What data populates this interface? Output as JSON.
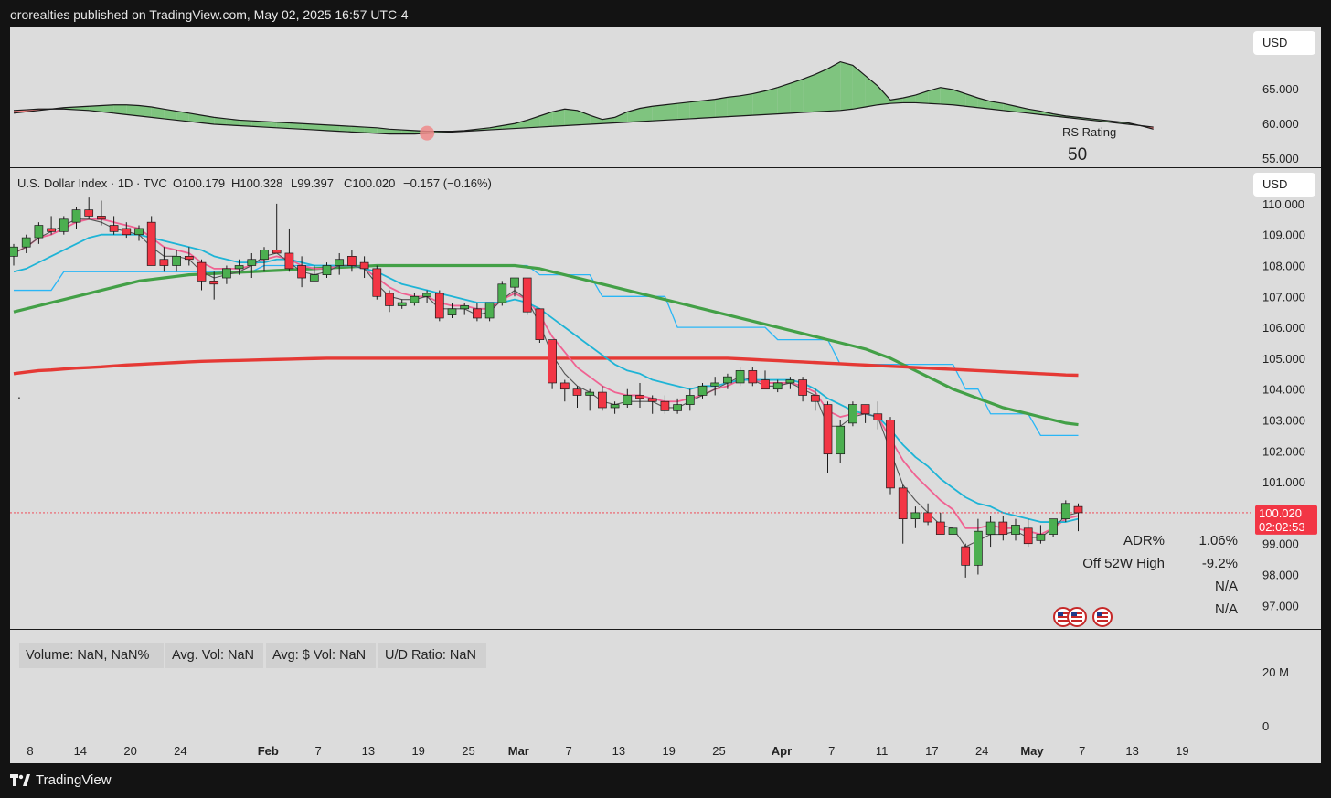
{
  "header": {
    "published_text": "ororealties published on TradingView.com, May 02, 2025 16:57 UTC-4"
  },
  "footer": {
    "logo_text": "TradingView"
  },
  "currency_label": "USD",
  "rs_panel": {
    "label": "RS Rating",
    "value": "50",
    "y_ticks": [
      "65.000",
      "60.000",
      "55.000"
    ],
    "line": [
      61.6,
      61.8,
      62.0,
      62.2,
      62.4,
      62.5,
      62.6,
      62.7,
      62.8,
      62.8,
      62.7,
      62.5,
      62.2,
      61.9,
      61.6,
      61.3,
      61.0,
      60.8,
      60.6,
      60.5,
      60.4,
      60.3,
      60.2,
      60.1,
      60.0,
      59.9,
      59.8,
      59.7,
      59.6,
      59.5,
      59.3,
      59.2,
      59.1,
      59.0,
      59.0,
      59.0,
      59.1,
      59.3,
      59.5,
      59.8,
      60.1,
      60.6,
      61.2,
      61.8,
      62.2,
      62.0,
      61.3,
      60.7,
      61.0,
      61.8,
      62.3,
      62.6,
      62.8,
      63.0,
      63.2,
      63.4,
      63.6,
      63.9,
      64.1,
      64.4,
      64.8,
      65.3,
      65.9,
      66.5,
      67.2,
      68.0,
      69.0,
      68.5,
      67.0,
      65.5,
      63.5,
      63.8,
      64.2,
      64.8,
      65.3,
      65.0,
      64.4,
      63.8,
      63.3,
      63.0,
      62.6,
      62.2,
      61.9,
      61.5,
      61.2,
      61.0,
      60.8,
      60.6,
      60.4,
      60.2,
      59.8,
      59.3
    ],
    "baseline": [
      62.0,
      62.1,
      62.2,
      62.2,
      62.2,
      62.1,
      62.0,
      61.8,
      61.6,
      61.4,
      61.2,
      61.0,
      60.8,
      60.6,
      60.4,
      60.2,
      60.0,
      59.9,
      59.8,
      59.7,
      59.6,
      59.5,
      59.4,
      59.3,
      59.2,
      59.1,
      59.0,
      58.9,
      58.8,
      58.7,
      58.6,
      58.6,
      58.6,
      58.7,
      58.8,
      58.9,
      59.0,
      59.1,
      59.2,
      59.3,
      59.4,
      59.5,
      59.6,
      59.7,
      59.8,
      59.9,
      60.0,
      60.1,
      60.2,
      60.3,
      60.4,
      60.5,
      60.6,
      60.7,
      60.8,
      60.9,
      61.0,
      61.1,
      61.2,
      61.3,
      61.4,
      61.5,
      61.6,
      61.7,
      61.8,
      61.9,
      62.0,
      62.2,
      62.5,
      62.8,
      63.0,
      63.1,
      63.1,
      63.0,
      62.9,
      62.8,
      62.6,
      62.4,
      62.2,
      62.0,
      61.8,
      61.6,
      61.4,
      61.2,
      61.0,
      60.8,
      60.6,
      60.4,
      60.2,
      60.0,
      59.8,
      59.6
    ]
  },
  "main_panel": {
    "title": "U.S. Dollar Index · 1D · TVC",
    "ohlc": {
      "open": "O100.179",
      "high": "H100.328",
      "low": "L99.397",
      "close": "C100.020",
      "change": "−0.157 (−0.16%)"
    },
    "price_tag": {
      "price": "100.020",
      "countdown": "02:02:53"
    },
    "stats": [
      {
        "label": "ADR%",
        "value": "1.06%"
      },
      {
        "label": "Off 52W High",
        "value": "-9.2%"
      },
      {
        "label": "",
        "value": "N/A"
      },
      {
        "label": "",
        "value": "N/A"
      }
    ],
    "bullet": "."
  },
  "volume_panel": {
    "boxes": [
      "Volume: NaN, NaN%",
      "Avg. Vol: NaN",
      "Avg: $ Vol: NaN",
      "U/D Ratio: NaN"
    ],
    "y_ticks": [
      "20 M",
      "0"
    ]
  },
  "colors": {
    "bull": "#4caf50",
    "bear": "#f23645",
    "ema_fast": "#1eb4d6",
    "ema_slow": "#f06292",
    "sma50": "#43a047",
    "sma200": "#e53935",
    "step_line": "#29b6f6",
    "rs_up": "#7fc47f",
    "rs_down": "#f08080"
  },
  "chart_data": {
    "type": "candlestick",
    "x_ticks": [
      "8",
      "14",
      "20",
      "24",
      "Feb",
      "7",
      "13",
      "19",
      "25",
      "Mar",
      "7",
      "13",
      "19",
      "25",
      "Apr",
      "7",
      "11",
      "17",
      "24",
      "May",
      "7",
      "13",
      "19"
    ],
    "y_axis": {
      "ticks": [
        "110.000",
        "109.000",
        "108.000",
        "107.000",
        "106.000",
        "105.000",
        "104.000",
        "103.000",
        "102.000",
        "101.000",
        "99.000",
        "98.000",
        "97.000"
      ],
      "range": [
        96.7,
        111.3
      ]
    },
    "candles": [
      [
        108.3,
        108.7,
        108.0,
        108.6
      ],
      [
        108.6,
        109.0,
        108.4,
        108.9
      ],
      [
        108.9,
        109.4,
        108.7,
        109.3
      ],
      [
        109.2,
        109.6,
        109.0,
        109.1
      ],
      [
        109.1,
        109.6,
        109.0,
        109.5
      ],
      [
        109.4,
        109.9,
        109.2,
        109.8
      ],
      [
        109.8,
        110.2,
        109.5,
        109.6
      ],
      [
        109.6,
        110.1,
        109.3,
        109.5
      ],
      [
        109.3,
        109.6,
        109.0,
        109.1
      ],
      [
        109.2,
        109.4,
        108.9,
        109.0
      ],
      [
        109.0,
        109.3,
        108.8,
        109.2
      ],
      [
        109.4,
        109.6,
        108.0,
        108.0
      ],
      [
        108.2,
        108.6,
        107.8,
        108.0
      ],
      [
        108.0,
        108.5,
        107.8,
        108.3
      ],
      [
        108.3,
        108.6,
        108.0,
        108.2
      ],
      [
        108.1,
        108.2,
        107.2,
        107.5
      ],
      [
        107.5,
        107.8,
        106.9,
        107.4
      ],
      [
        107.6,
        108.0,
        107.4,
        107.9
      ],
      [
        107.9,
        108.2,
        107.7,
        108.0
      ],
      [
        108.0,
        108.4,
        107.6,
        108.2
      ],
      [
        108.2,
        108.6,
        107.8,
        108.5
      ],
      [
        108.5,
        110.0,
        108.4,
        108.4
      ],
      [
        108.4,
        109.2,
        107.8,
        107.9
      ],
      [
        108.0,
        108.3,
        107.3,
        107.6
      ],
      [
        107.5,
        108.0,
        107.5,
        107.7
      ],
      [
        107.7,
        108.1,
        107.6,
        108.0
      ],
      [
        108.0,
        108.4,
        107.7,
        108.2
      ],
      [
        108.3,
        108.5,
        107.8,
        108.0
      ],
      [
        108.1,
        108.3,
        107.6,
        107.9
      ],
      [
        107.9,
        108.0,
        106.9,
        107.0
      ],
      [
        107.1,
        107.2,
        106.5,
        106.7
      ],
      [
        106.7,
        106.9,
        106.6,
        106.8
      ],
      [
        106.8,
        107.1,
        106.7,
        107.0
      ],
      [
        107.0,
        107.2,
        106.8,
        107.1
      ],
      [
        107.1,
        107.2,
        106.2,
        106.3
      ],
      [
        106.4,
        106.8,
        106.3,
        106.6
      ],
      [
        106.6,
        106.8,
        106.4,
        106.7
      ],
      [
        106.6,
        106.8,
        106.2,
        106.3
      ],
      [
        106.3,
        106.8,
        106.2,
        106.8
      ],
      [
        106.8,
        107.5,
        106.7,
        107.4
      ],
      [
        107.3,
        107.6,
        107.0,
        107.6
      ],
      [
        107.6,
        107.6,
        106.4,
        106.5
      ],
      [
        106.6,
        106.6,
        105.5,
        105.6
      ],
      [
        105.6,
        105.6,
        104.0,
        104.2
      ],
      [
        104.2,
        104.3,
        103.6,
        104.0
      ],
      [
        104.0,
        104.1,
        103.4,
        103.8
      ],
      [
        103.8,
        104.0,
        103.3,
        103.9
      ],
      [
        103.9,
        104.1,
        103.3,
        103.4
      ],
      [
        103.4,
        103.6,
        103.2,
        103.5
      ],
      [
        103.5,
        104.0,
        103.4,
        103.8
      ],
      [
        103.8,
        104.2,
        103.4,
        103.7
      ],
      [
        103.7,
        103.8,
        103.2,
        103.6
      ],
      [
        103.6,
        103.8,
        103.2,
        103.3
      ],
      [
        103.3,
        103.7,
        103.2,
        103.5
      ],
      [
        103.5,
        104.0,
        103.3,
        103.8
      ],
      [
        103.8,
        104.2,
        103.7,
        104.1
      ],
      [
        104.1,
        104.4,
        103.8,
        104.2
      ],
      [
        104.2,
        104.5,
        104.0,
        104.4
      ],
      [
        104.2,
        104.7,
        104.1,
        104.6
      ],
      [
        104.6,
        104.7,
        104.1,
        104.2
      ],
      [
        104.3,
        104.6,
        104.0,
        104.0
      ],
      [
        104.0,
        104.3,
        103.9,
        104.2
      ],
      [
        104.2,
        104.4,
        104.0,
        104.3
      ],
      [
        104.3,
        104.4,
        103.6,
        103.8
      ],
      [
        103.8,
        104.0,
        103.3,
        103.6
      ],
      [
        103.5,
        103.6,
        101.3,
        101.9
      ],
      [
        101.9,
        103.0,
        101.6,
        102.8
      ],
      [
        102.9,
        103.6,
        102.8,
        103.5
      ],
      [
        103.5,
        103.5,
        102.9,
        103.2
      ],
      [
        103.2,
        103.6,
        102.7,
        103.0
      ],
      [
        103.0,
        103.1,
        100.6,
        100.8
      ],
      [
        100.8,
        100.9,
        99.0,
        99.8
      ],
      [
        99.8,
        100.2,
        99.5,
        100.0
      ],
      [
        100.0,
        100.3,
        99.6,
        99.7
      ],
      [
        99.7,
        100.0,
        99.3,
        99.3
      ],
      [
        99.3,
        99.5,
        99.0,
        99.5
      ],
      [
        98.9,
        99.0,
        97.9,
        98.3
      ],
      [
        98.3,
        99.8,
        98.0,
        99.4
      ],
      [
        99.3,
        99.9,
        98.9,
        99.7
      ],
      [
        99.7,
        99.9,
        99.1,
        99.3
      ],
      [
        99.3,
        99.8,
        99.1,
        99.6
      ],
      [
        99.5,
        99.8,
        98.9,
        99.0
      ],
      [
        99.1,
        99.6,
        99.0,
        99.3
      ],
      [
        99.3,
        99.8,
        99.2,
        99.8
      ],
      [
        99.8,
        100.4,
        99.7,
        100.3
      ],
      [
        100.2,
        100.3,
        99.4,
        100.0
      ]
    ],
    "series": [
      {
        "values": [
          107.8,
          107.9,
          108.1,
          108.3,
          108.5,
          108.7,
          108.9,
          109.0,
          109.0,
          109.0,
          109.0,
          108.9,
          108.8,
          108.7,
          108.6,
          108.5,
          108.3,
          108.2,
          108.1,
          108.1,
          108.1,
          108.2,
          108.2,
          108.1,
          108.0,
          108.0,
          108.0,
          108.0,
          107.9,
          107.8,
          107.6,
          107.4,
          107.3,
          107.2,
          107.1,
          107.0,
          106.9,
          106.8,
          106.8,
          106.8,
          106.9,
          106.8,
          106.6,
          106.3,
          106.0,
          105.7,
          105.4,
          105.1,
          104.8,
          104.6,
          104.5,
          104.3,
          104.2,
          104.1,
          104.0,
          104.1,
          104.1,
          104.2,
          104.3,
          104.3,
          104.3,
          104.3,
          104.3,
          104.2,
          104.0,
          103.7,
          103.5,
          103.3,
          103.2,
          103.1,
          102.7,
          102.2,
          101.8,
          101.5,
          101.1,
          100.8,
          100.5,
          100.3,
          100.2,
          100.0,
          99.9,
          99.8,
          99.7,
          99.7,
          99.7,
          99.8
        ]
      },
      {
        "values": [
          108.4,
          108.6,
          108.9,
          109.0,
          109.2,
          109.4,
          109.5,
          109.5,
          109.4,
          109.3,
          109.2,
          108.9,
          108.6,
          108.5,
          108.4,
          108.1,
          107.9,
          107.9,
          107.9,
          108.0,
          108.2,
          108.3,
          108.2,
          108.0,
          107.9,
          107.9,
          108.0,
          108.0,
          107.9,
          107.6,
          107.3,
          107.1,
          107.0,
          107.0,
          106.8,
          106.7,
          106.7,
          106.6,
          106.6,
          106.9,
          107.1,
          106.9,
          106.4,
          105.7,
          105.2,
          104.7,
          104.4,
          104.1,
          103.9,
          103.8,
          103.8,
          103.7,
          103.6,
          103.6,
          103.7,
          103.8,
          104.0,
          104.1,
          104.3,
          104.3,
          104.2,
          104.2,
          104.2,
          104.1,
          103.9,
          103.3,
          103.1,
          103.2,
          103.2,
          103.1,
          102.4,
          101.7,
          101.2,
          100.8,
          100.4,
          100.1,
          99.5,
          99.5,
          99.6,
          99.5,
          99.5,
          99.4,
          99.3,
          99.5,
          99.8,
          99.9
        ]
      },
      {
        "values": [
          106.5,
          106.6,
          106.7,
          106.8,
          106.9,
          107.0,
          107.1,
          107.2,
          107.3,
          107.4,
          107.5,
          107.55,
          107.6,
          107.65,
          107.7,
          107.72,
          107.74,
          107.76,
          107.78,
          107.8,
          107.82,
          107.84,
          107.86,
          107.88,
          107.9,
          107.92,
          107.94,
          107.96,
          107.98,
          108.0,
          108.0,
          108.0,
          108.0,
          108.0,
          108.0,
          108.0,
          108.0,
          108.0,
          108.0,
          108.0,
          108.0,
          107.95,
          107.9,
          107.8,
          107.7,
          107.6,
          107.5,
          107.4,
          107.3,
          107.2,
          107.1,
          107.0,
          106.9,
          106.8,
          106.7,
          106.6,
          106.5,
          106.4,
          106.3,
          106.2,
          106.1,
          106.0,
          105.9,
          105.8,
          105.7,
          105.6,
          105.5,
          105.4,
          105.3,
          105.15,
          105.0,
          104.8,
          104.6,
          104.4,
          104.2,
          104.0,
          103.85,
          103.7,
          103.55,
          103.4,
          103.3,
          103.2,
          103.1,
          103.0,
          102.9,
          102.85
        ]
      },
      {
        "values": [
          104.5,
          104.55,
          104.6,
          104.62,
          104.65,
          104.68,
          104.7,
          104.72,
          104.75,
          104.78,
          104.8,
          104.82,
          104.84,
          104.86,
          104.88,
          104.9,
          104.91,
          104.92,
          104.93,
          104.94,
          104.95,
          104.96,
          104.97,
          104.98,
          104.99,
          105.0,
          105.0,
          105.0,
          105.0,
          105.0,
          105.0,
          105.0,
          105.0,
          105.0,
          105.0,
          105.0,
          105.0,
          105.0,
          105.0,
          105.0,
          105.0,
          105.0,
          105.0,
          105.0,
          105.0,
          105.0,
          105.0,
          105.0,
          105.0,
          105.0,
          105.0,
          105.0,
          105.0,
          105.0,
          105.0,
          105.0,
          105.0,
          105.0,
          104.98,
          104.96,
          104.94,
          104.92,
          104.9,
          104.88,
          104.86,
          104.84,
          104.82,
          104.8,
          104.78,
          104.76,
          104.74,
          104.72,
          104.7,
          104.68,
          104.66,
          104.64,
          104.62,
          104.6,
          104.58,
          104.56,
          104.54,
          104.52,
          104.5,
          104.48,
          104.46,
          104.45
        ]
      },
      {
        "values": [
          107.2,
          107.2,
          107.2,
          107.2,
          107.8,
          107.8,
          107.8,
          107.8,
          107.8,
          107.8,
          107.8,
          107.8,
          107.8,
          107.8,
          107.8,
          107.8,
          107.8,
          107.8,
          107.8,
          107.8,
          108.0,
          108.0,
          108.0,
          108.0,
          108.0,
          108.0,
          108.0,
          108.0,
          108.0,
          108.0,
          108.0,
          108.0,
          108.0,
          108.0,
          108.0,
          108.0,
          108.0,
          108.0,
          108.0,
          108.0,
          108.0,
          108.0,
          107.7,
          107.7,
          107.7,
          107.7,
          107.7,
          107.0,
          107.0,
          107.0,
          107.0,
          107.0,
          107.0,
          106.0,
          106.0,
          106.0,
          106.0,
          106.0,
          106.0,
          106.0,
          106.0,
          105.6,
          105.6,
          105.6,
          105.6,
          105.6,
          104.8,
          104.8,
          104.8,
          104.8,
          104.8,
          104.8,
          104.8,
          104.8,
          104.8,
          104.8,
          104.0,
          104.0,
          103.2,
          103.2,
          103.2,
          103.2,
          102.5,
          102.5,
          102.5,
          102.5
        ]
      },
      {
        "values": [
          108.4,
          108.6,
          108.9,
          109.1,
          109.3,
          109.5,
          109.5,
          109.4,
          109.2,
          109.1,
          109.0,
          108.6,
          108.3,
          108.3,
          108.2,
          107.8,
          107.6,
          107.7,
          107.8,
          108.0,
          108.3,
          108.4,
          108.1,
          107.8,
          107.7,
          107.8,
          108.0,
          108.0,
          107.9,
          107.4,
          107.0,
          106.9,
          106.9,
          107.0,
          106.6,
          106.6,
          106.6,
          106.4,
          106.5,
          106.9,
          107.2,
          106.9,
          106.1,
          105.1,
          104.5,
          104.1,
          103.9,
          103.6,
          103.5,
          103.6,
          103.6,
          103.6,
          103.4,
          103.4,
          103.6,
          103.8,
          104.0,
          104.2,
          104.4,
          104.3,
          104.1,
          104.1,
          104.2,
          104.0,
          103.8,
          102.8,
          102.8,
          103.1,
          103.2,
          103.1,
          102.0,
          100.9,
          100.4,
          100.0,
          99.6,
          99.5,
          98.9,
          99.1,
          99.3,
          99.3,
          99.4,
          99.2,
          99.2,
          99.5,
          99.9,
          100.0
        ]
      }
    ]
  }
}
